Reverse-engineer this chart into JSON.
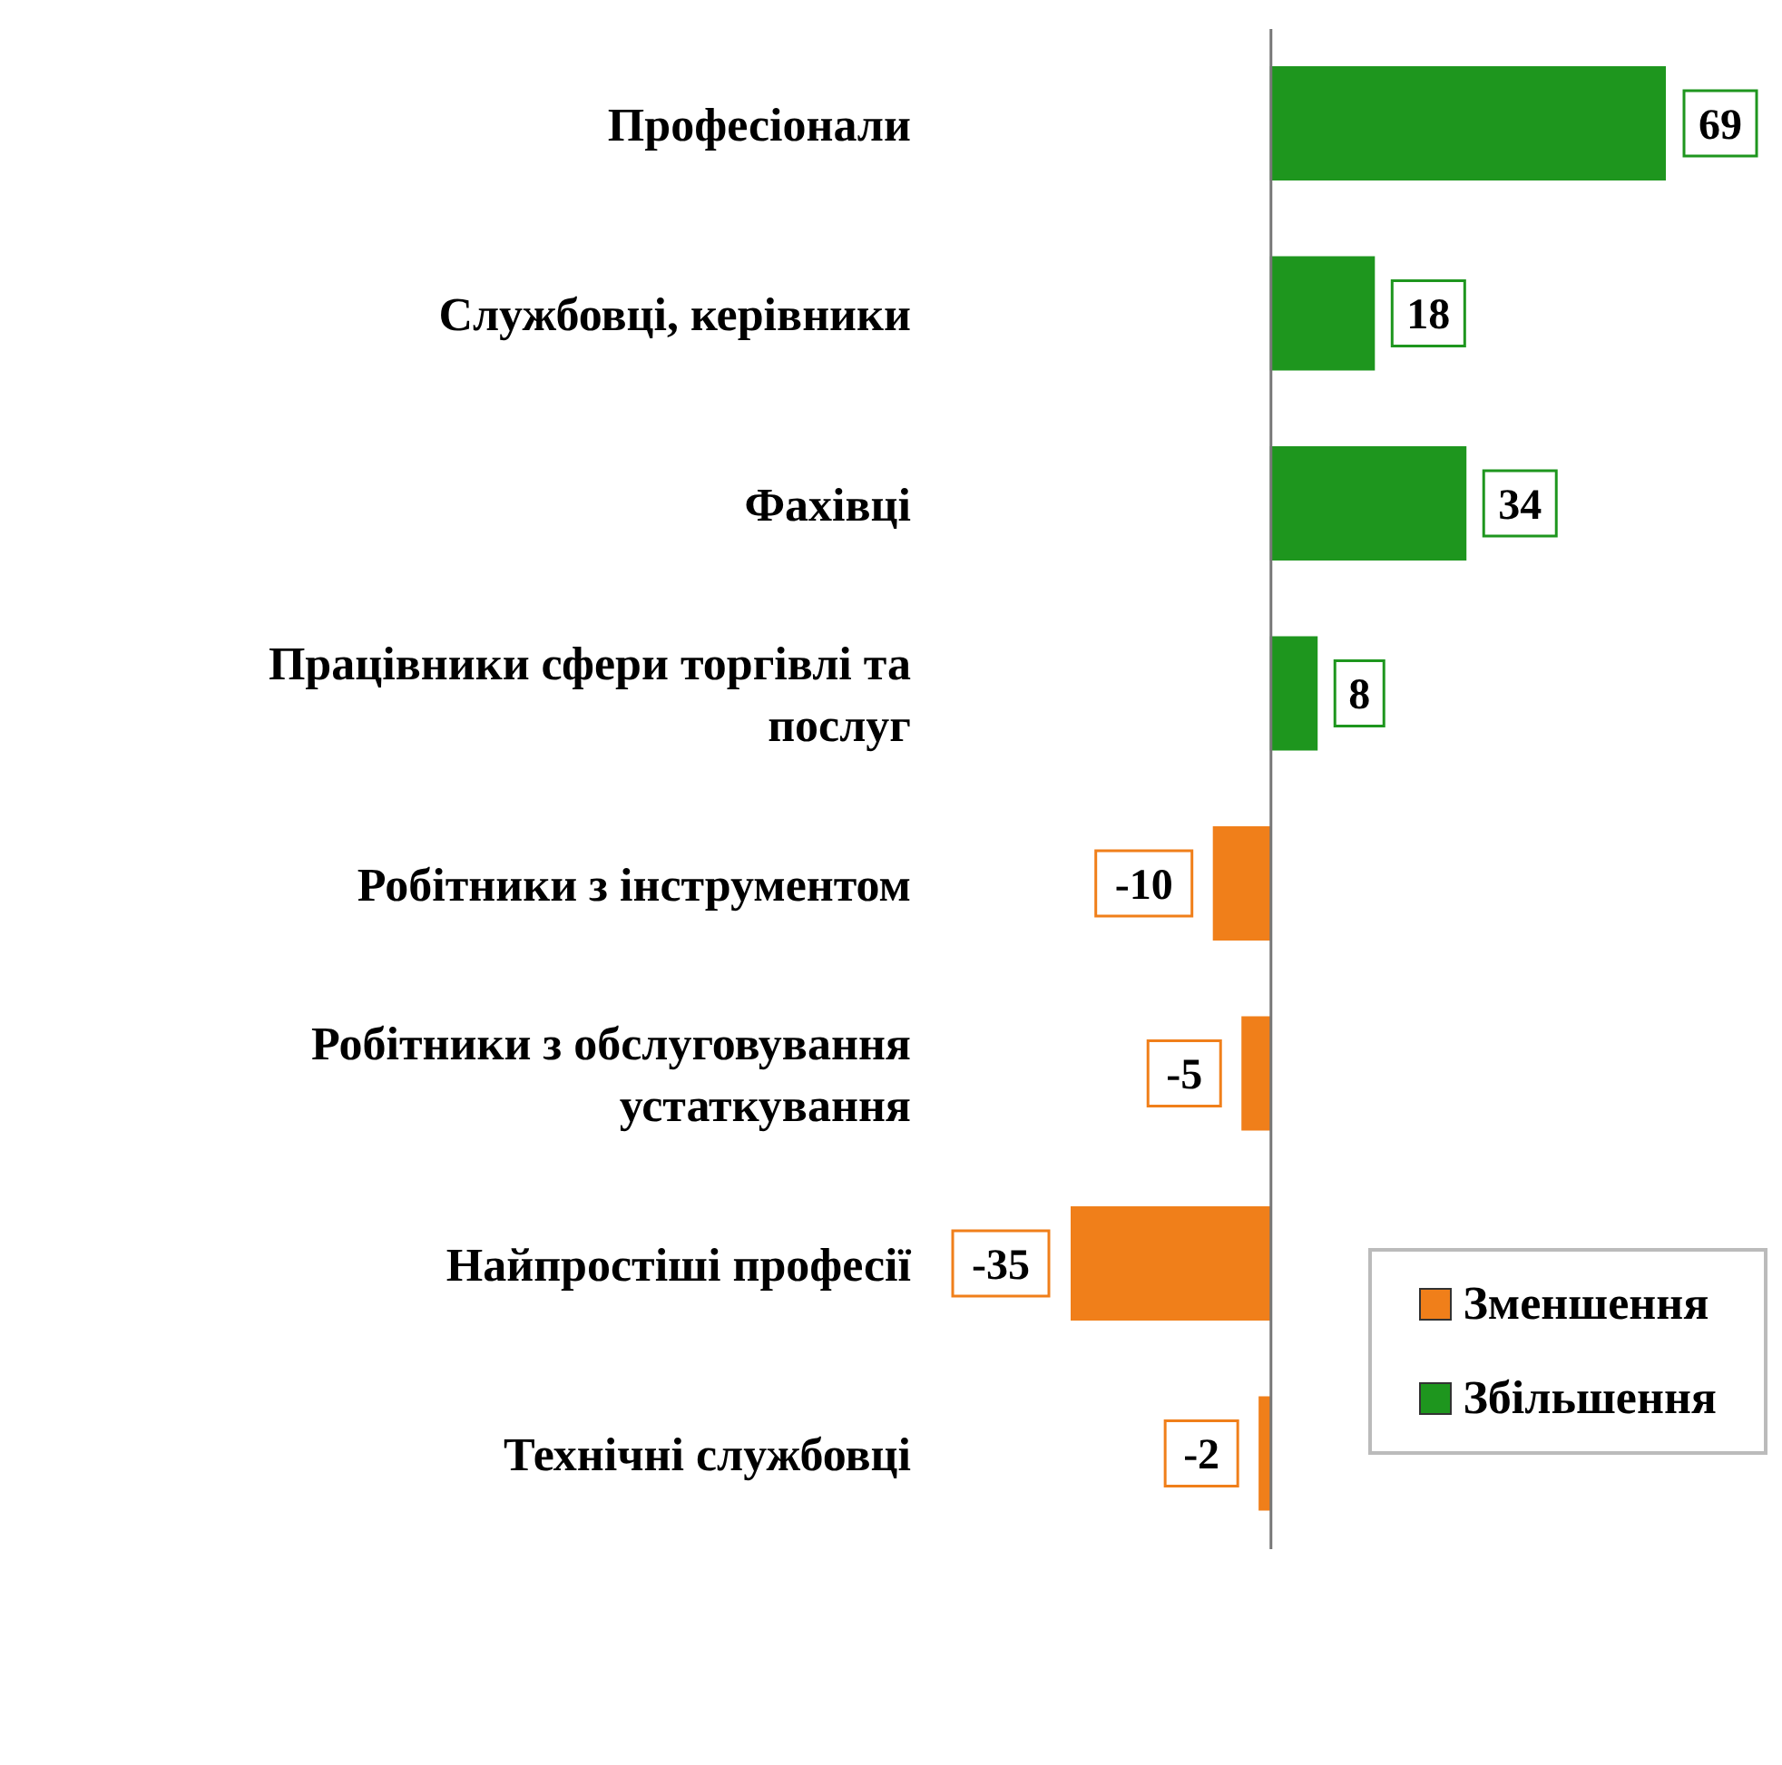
{
  "chart_data": {
    "type": "bar",
    "orientation": "horizontal",
    "stacked": true,
    "categories": [
      "Професіонали",
      "Службовці, керівники",
      "Фахівці",
      "Працівники сфери торгівлі та послуг",
      "Робітники з інструментом",
      "Робітники з обслуговування устаткування",
      "Найпростіші професії",
      "Технічні службовці"
    ],
    "series": [
      {
        "name": "Зменшення",
        "color": "#f07f1a",
        "values": [
          null,
          null,
          null,
          null,
          -10,
          -5,
          -35,
          -2
        ]
      },
      {
        "name": "Збільшення",
        "color": "#1e961e",
        "values": [
          69,
          18,
          34,
          8,
          null,
          null,
          null,
          null
        ]
      }
    ],
    "tick_labels": "y",
    "data_labels": true,
    "legend": "bottom right"
  }
}
